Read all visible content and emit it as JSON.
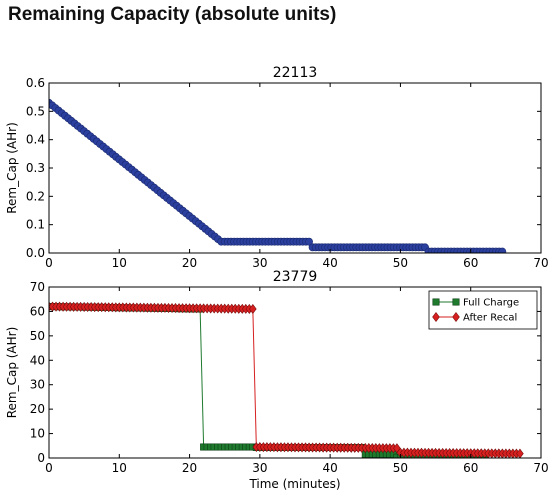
{
  "page": {
    "title": "Remaining Capacity (absolute units)"
  },
  "chart_data": [
    {
      "type": "scatter",
      "title": "22113",
      "xlabel": "",
      "ylabel": "Rem_Cap (AHr)",
      "xlim": [
        0,
        70
      ],
      "ylim": [
        0,
        0.6
      ],
      "xticks": [
        0,
        10,
        20,
        30,
        40,
        50,
        60,
        70
      ],
      "yticks": [
        0.0,
        0.1,
        0.2,
        0.3,
        0.4,
        0.5,
        0.6
      ],
      "grid": false,
      "series": [
        {
          "color": "#2b3f9e",
          "marker": "circle",
          "x": [
            0,
            24.5,
            25,
            37,
            37.5,
            53.5,
            54,
            64.5
          ],
          "y": [
            0.53,
            0.04,
            0.04,
            0.04,
            0.02,
            0.02,
            0.005,
            0.005
          ]
        }
      ]
    },
    {
      "type": "line",
      "title": "23779",
      "xlabel": "Time (minutes)",
      "ylabel": "Rem_Cap (AHr)",
      "xlim": [
        0,
        70
      ],
      "ylim": [
        0,
        70
      ],
      "xticks": [
        0,
        10,
        20,
        30,
        40,
        50,
        60,
        70
      ],
      "yticks": [
        0,
        10,
        20,
        30,
        40,
        50,
        60,
        70
      ],
      "grid": false,
      "legend": "top-right",
      "series": [
        {
          "name": "Full Charge",
          "color": "#1f7a2e",
          "marker": "square",
          "x": [
            0,
            21.5,
            22,
            29,
            29.5,
            44.5,
            45,
            49,
            49.5,
            62
          ],
          "y": [
            62,
            61,
            4.5,
            4.5,
            4.3,
            4.3,
            1.5,
            1.5,
            0.3,
            0.3
          ]
        },
        {
          "name": "After Recal",
          "color": "#d62020",
          "marker": "diamond",
          "x": [
            0,
            29,
            29.5,
            49.5,
            50,
            67
          ],
          "y": [
            62,
            61,
            4.5,
            4.0,
            2.2,
            1.8
          ]
        }
      ]
    }
  ]
}
